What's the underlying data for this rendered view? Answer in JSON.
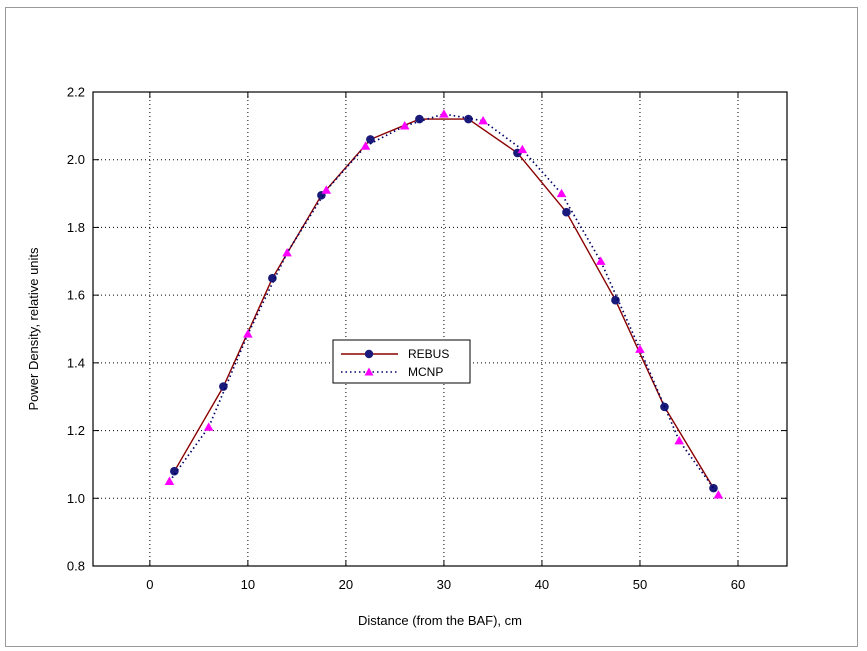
{
  "chart_data": {
    "type": "line",
    "title": "",
    "xlabel": "Distance (from the BAF), cm",
    "ylabel": "Power Density, relative units",
    "xlim": [
      -5.8,
      65
    ],
    "ylim": [
      0.8,
      2.2
    ],
    "x_ticks": [
      "0",
      "10",
      "20",
      "30",
      "40",
      "50",
      "60"
    ],
    "y_ticks": [
      "0.8",
      "1.0",
      "1.2",
      "1.4",
      "1.6",
      "1.8",
      "2.0",
      "2.2"
    ],
    "grid": true,
    "legend_position": "center-left",
    "series": [
      {
        "name": "REBUS",
        "color": "#8b0000",
        "marker_color": "#1a1a7a",
        "marker": "circle",
        "line_style": "solid",
        "x": [
          2.5,
          7.5,
          12.5,
          17.5,
          22.5,
          27.5,
          32.5,
          37.5,
          42.5,
          47.5,
          52.5,
          57.5
        ],
        "y": [
          1.08,
          1.33,
          1.65,
          1.895,
          2.06,
          2.12,
          2.12,
          2.02,
          1.845,
          1.585,
          1.27,
          1.03
        ]
      },
      {
        "name": "MCNP",
        "color": "#000066",
        "marker_color": "#ff00ff",
        "marker": "triangle",
        "line_style": "dotted",
        "x": [
          2,
          6,
          10,
          14,
          18,
          22,
          26,
          30,
          34,
          38,
          42,
          46,
          50,
          54,
          58
        ],
        "y": [
          1.05,
          1.21,
          1.485,
          1.725,
          1.91,
          2.04,
          2.1,
          2.135,
          2.115,
          2.03,
          1.9,
          1.7,
          1.44,
          1.17,
          1.01
        ]
      }
    ]
  }
}
